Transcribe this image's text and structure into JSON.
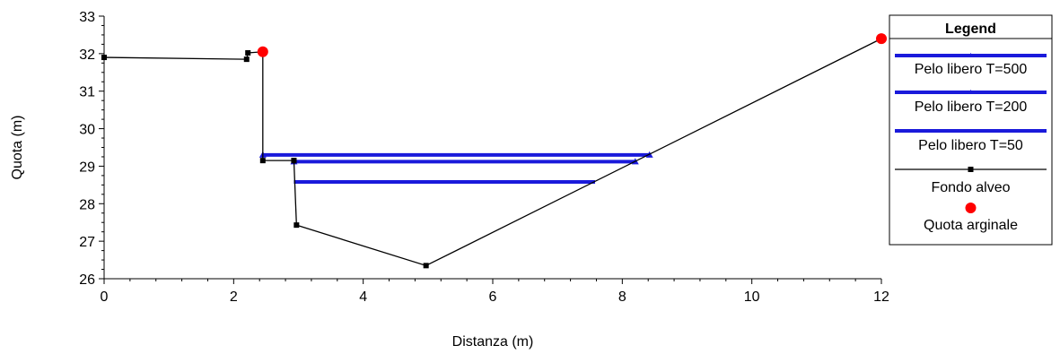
{
  "chart_data": {
    "type": "line",
    "xlabel": "Distanza (m)",
    "ylabel": "Quota (m)",
    "xlim": [
      0,
      12
    ],
    "ylim": [
      26,
      33
    ],
    "xticks": [
      0,
      2,
      4,
      6,
      8,
      10,
      12
    ],
    "yticks": [
      26,
      27,
      28,
      29,
      30,
      31,
      32,
      33
    ],
    "xtick_labels": [
      "0",
      "2",
      "4",
      "6",
      "8",
      "10",
      "12"
    ],
    "ytick_labels": [
      "26",
      "27",
      "28",
      "29",
      "30",
      "31",
      "32",
      "33"
    ],
    "grid": false,
    "legend": {
      "title": "Legend",
      "placement": "right",
      "entries": [
        "Pelo libero  T=500",
        "Pelo libero  T=200",
        "Pelo libero  T=50",
        "Fondo alveo",
        "Quota arginale"
      ]
    },
    "series": [
      {
        "name": "Pelo libero  T=500",
        "color": "#1a1adb",
        "marker": "triangle",
        "x": [
          2.45,
          8.42
        ],
        "y": [
          29.3,
          29.3
        ]
      },
      {
        "name": "Pelo libero  T=200",
        "color": "#1a1adb",
        "marker": "triangle",
        "x": [
          2.93,
          8.2
        ],
        "y": [
          29.12,
          29.12
        ]
      },
      {
        "name": "Pelo libero  T=50",
        "color": "#1a1adb",
        "marker": "none",
        "x": [
          2.93,
          7.58
        ],
        "y": [
          28.58,
          28.58
        ]
      },
      {
        "name": "Fondo alveo",
        "color": "#000000",
        "marker": "square",
        "x": [
          0.0,
          2.2,
          2.22,
          2.45,
          2.45,
          2.93,
          2.93,
          2.97,
          4.97,
          12.0
        ],
        "y": [
          31.9,
          31.85,
          32.02,
          32.05,
          29.15,
          29.15,
          29.15,
          27.43,
          26.35,
          32.4
        ]
      },
      {
        "name": "Quota arginale",
        "color": "#ff0000",
        "marker": "circle",
        "x": [
          2.45,
          12.0
        ],
        "y": [
          32.05,
          32.4
        ]
      }
    ]
  }
}
